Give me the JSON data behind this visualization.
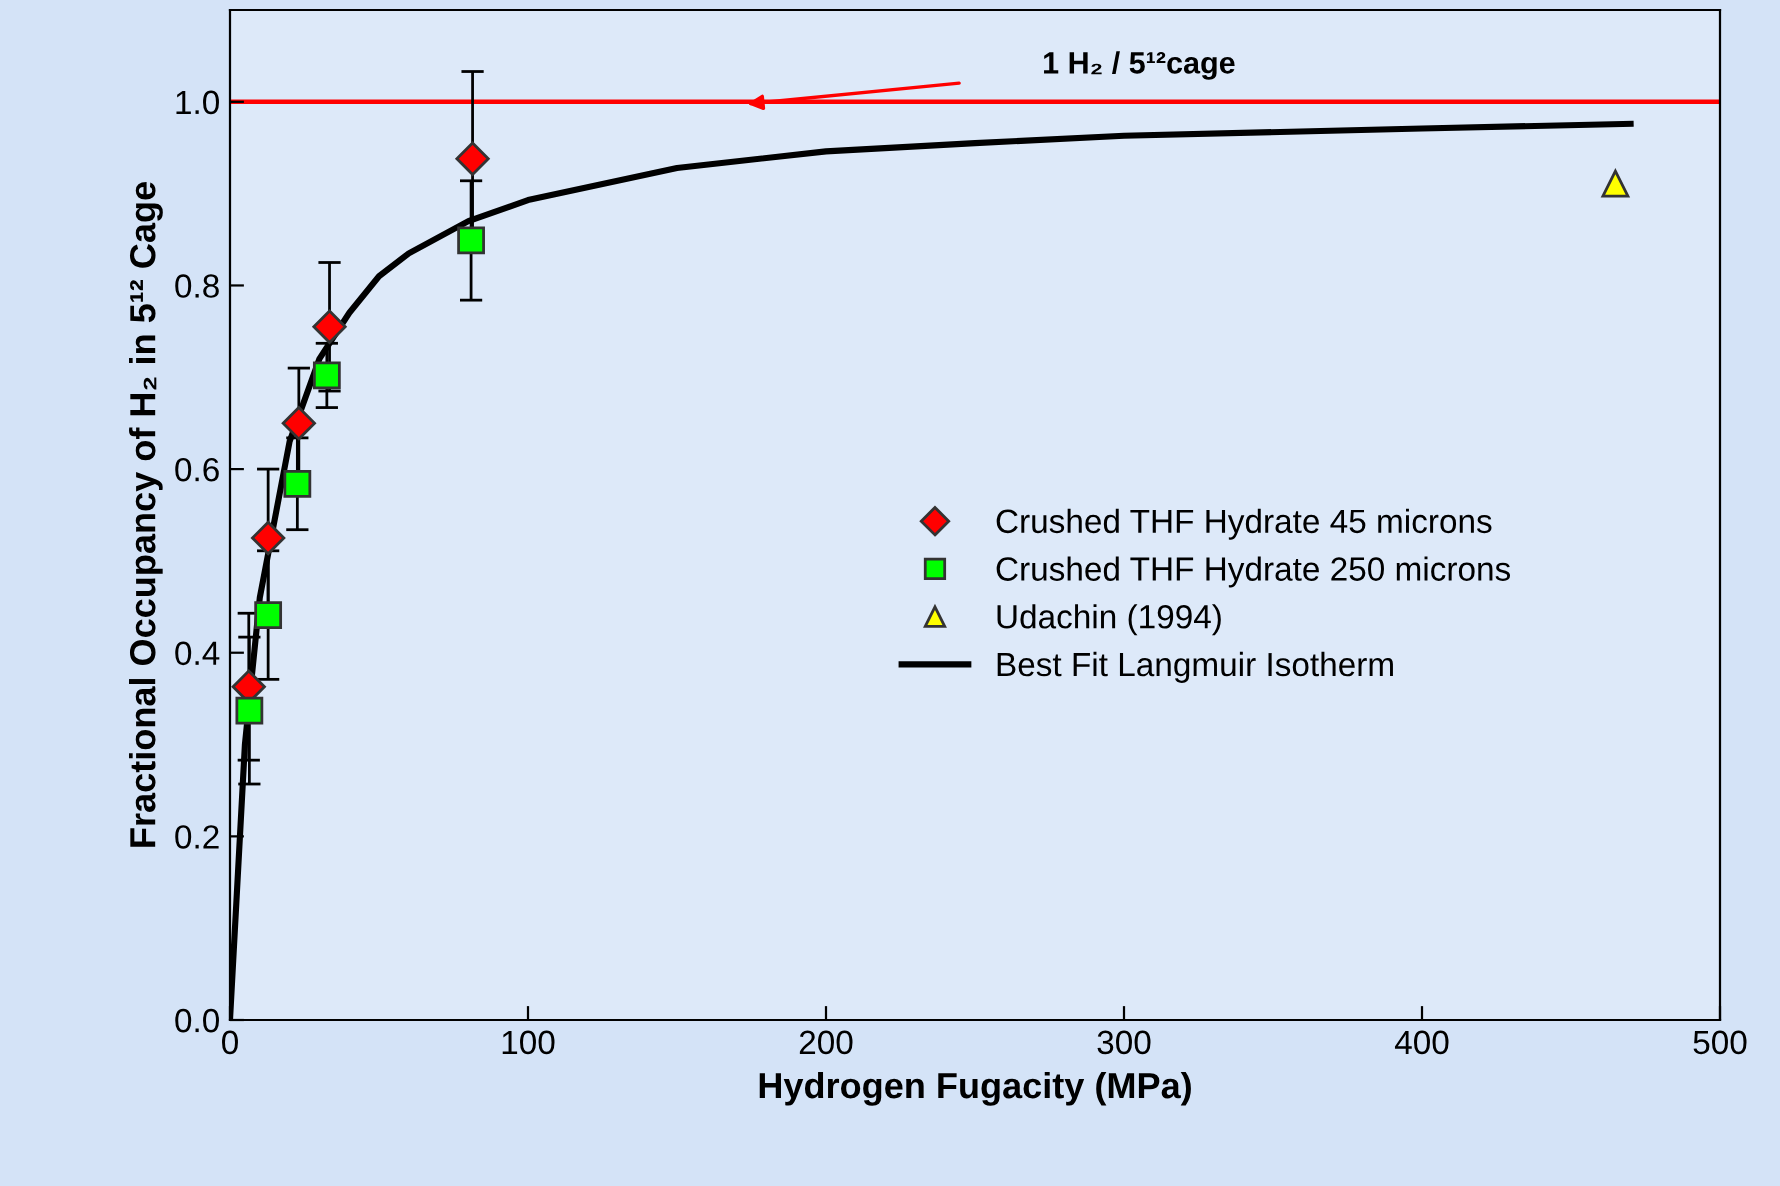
{
  "chart_data": {
    "type": "scatter",
    "xlabel": "Hydrogen Fugacity (MPa)",
    "ylabel": "Fractional Occupancy of H₂ in 5¹² Cage",
    "xlim": [
      0,
      500
    ],
    "xticks": [
      0,
      100,
      200,
      300,
      400,
      500
    ],
    "ylim": [
      0,
      1.1
    ],
    "yticks": [
      {
        "value": 0,
        "label": "0.0"
      },
      {
        "value": 0.2,
        "label": "0.2"
      },
      {
        "value": 0.4,
        "label": "0.4"
      },
      {
        "value": 0.6,
        "label": "0.6"
      },
      {
        "value": 0.8,
        "label": "0.8"
      },
      {
        "value": 1.0,
        "label": "1.0"
      }
    ],
    "grid": false,
    "legend": "right",
    "series": [
      {
        "name": "Crushed THF Hydrate 45 microns",
        "marker": "diamond",
        "color": "#ff0000",
        "x": [
          6.3,
          12.8,
          23.1,
          33.4,
          81.4
        ],
        "values": [
          0.363,
          0.525,
          0.65,
          0.755,
          0.938
        ],
        "errors": [
          0.08,
          0.075,
          0.06,
          0.07,
          0.095
        ]
      },
      {
        "name": "Crushed THF Hydrate 250 microns",
        "marker": "square",
        "color": "#00ff00",
        "x": [
          6.5,
          12.8,
          22.6,
          32.5,
          80.9
        ],
        "values": [
          0.337,
          0.441,
          0.584,
          0.702,
          0.849
        ],
        "errors": [
          0.08,
          0.07,
          0.05,
          0.035,
          0.065
        ]
      },
      {
        "name": "Udachin (1994)",
        "marker": "triangle",
        "color": "#ffff00",
        "x": [
          464.9
        ],
        "values": [
          0.911
        ]
      },
      {
        "name": "Best Fit Langmuir Isotherm",
        "type": "line",
        "marker": "none",
        "line_style": "solid",
        "color": "#000000",
        "x": [
          0,
          5,
          10,
          20,
          30,
          40,
          50,
          60,
          80,
          100,
          150,
          200,
          250,
          300,
          400,
          470
        ],
        "values": [
          0,
          0.3,
          0.46,
          0.63,
          0.72,
          0.77,
          0.81,
          0.835,
          0.87,
          0.893,
          0.928,
          0.946,
          0.955,
          0.963,
          0.971,
          0.976
        ]
      }
    ],
    "ref_lines": [
      {
        "axis": "y",
        "value": 1.0,
        "color": "#ff0000",
        "line_style": "solid"
      }
    ],
    "annotations": [
      "1 H₂ / 5¹²cage"
    ]
  }
}
